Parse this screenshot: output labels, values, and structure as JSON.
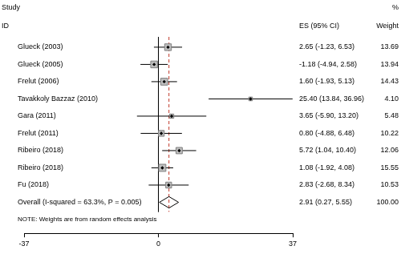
{
  "chart_data": {
    "type": "forest",
    "headers": {
      "study": "Study",
      "id": "ID",
      "es": "ES (95% CI)",
      "pct": "%",
      "weight": "Weight"
    },
    "studies": [
      {
        "name": "Glueck (2003)",
        "es": 2.65,
        "lower": -1.23,
        "upper": 6.53,
        "es_label": "2.65 (-1.23, 6.53)",
        "weight": 13.69,
        "weight_label": "13.69"
      },
      {
        "name": "Glueck (2005)",
        "es": -1.18,
        "lower": -4.94,
        "upper": 2.58,
        "es_label": "-1.18 (-4.94, 2.58)",
        "weight": 13.94,
        "weight_label": "13.94"
      },
      {
        "name": "Frelut (2006)",
        "es": 1.6,
        "lower": -1.93,
        "upper": 5.13,
        "es_label": "1.60 (-1.93, 5.13)",
        "weight": 14.43,
        "weight_label": "14.43"
      },
      {
        "name": "Tavakkoly Bazzaz (2010)",
        "es": 25.4,
        "lower": 13.84,
        "upper": 36.96,
        "es_label": "25.40 (13.84, 36.96)",
        "weight": 4.1,
        "weight_label": "4.10"
      },
      {
        "name": "Gara (2011)",
        "es": 3.65,
        "lower": -5.9,
        "upper": 13.2,
        "es_label": "3.65 (-5.90, 13.20)",
        "weight": 5.48,
        "weight_label": "5.48"
      },
      {
        "name": "Frelut (2011)",
        "es": 0.8,
        "lower": -4.88,
        "upper": 6.48,
        "es_label": "0.80 (-4.88, 6.48)",
        "weight": 10.22,
        "weight_label": "10.22"
      },
      {
        "name": "Ribeiro (2018)",
        "es": 5.72,
        "lower": 1.04,
        "upper": 10.4,
        "es_label": "5.72 (1.04, 10.40)",
        "weight": 12.06,
        "weight_label": "12.06"
      },
      {
        "name": "Ribeiro (2018)",
        "es": 1.08,
        "lower": -1.92,
        "upper": 4.08,
        "es_label": "1.08 (-1.92, 4.08)",
        "weight": 15.55,
        "weight_label": "15.55"
      },
      {
        "name": "Fu (2018)",
        "es": 2.83,
        "lower": -2.68,
        "upper": 8.34,
        "es_label": "2.83 (-2.68, 8.34)",
        "weight": 10.53,
        "weight_label": "10.53"
      }
    ],
    "overall": {
      "name": "Overall (I-squared = 63.3%, P = 0.005)",
      "es": 2.91,
      "lower": 0.27,
      "upper": 5.55,
      "es_label": "2.91 (0.27, 5.55)",
      "weight": 100,
      "weight_label": "100.00"
    },
    "note": "NOTE: Weights are from random effects analysis",
    "reference_line": 0,
    "xlim": [
      -37,
      37
    ],
    "xticks": [
      -37,
      0,
      37
    ]
  }
}
